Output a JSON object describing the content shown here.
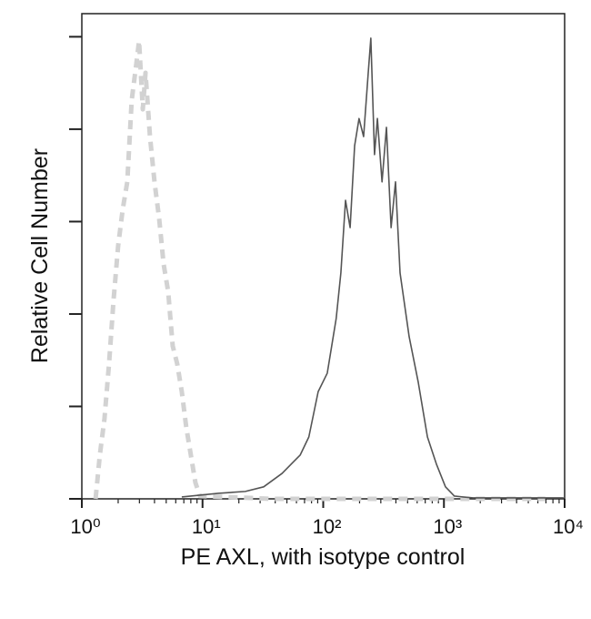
{
  "chart_data": {
    "type": "line",
    "xlabel": "PE AXL, with isotype control",
    "ylabel": "Relative Cell Number",
    "xscale": "log",
    "xlim": [
      1,
      10000
    ],
    "xticks": [
      {
        "value": 1,
        "label": "10⁰"
      },
      {
        "value": 10,
        "label": "10¹"
      },
      {
        "value": 100,
        "label": "10²"
      },
      {
        "value": 1000,
        "label": "10³"
      },
      {
        "value": 10000,
        "label": "10⁴"
      }
    ],
    "xminorticks": [
      2,
      3,
      4,
      5,
      6,
      7,
      8,
      9,
      20,
      30,
      40,
      50,
      60,
      70,
      80,
      90,
      200,
      300,
      400,
      500,
      600,
      700,
      800,
      900,
      2000,
      3000,
      4000,
      5000,
      6000,
      7000,
      8000,
      9000
    ],
    "ylim": [
      0,
      105
    ],
    "yticks": [
      0,
      20,
      40,
      60,
      80,
      100
    ],
    "series": [
      {
        "color": "#d2d2d2",
        "dashed": true,
        "x": [
          1.3,
          1.41,
          1.54,
          1.68,
          1.83,
          2.0,
          2.18,
          2.38,
          2.59,
          2.83,
          2.98,
          3.2,
          3.37,
          3.67,
          4.0,
          4.37,
          4.76,
          5.19,
          5.66,
          6.17,
          6.73,
          7.34,
          8.0,
          8.73,
          9.53,
          38.1,
          1230,
          6900
        ],
        "values": [
          0,
          9.5,
          17.3,
          29.2,
          42.9,
          54.8,
          62.6,
          68.6,
          86.3,
          94.2,
          99.1,
          84.3,
          92.2,
          78.4,
          68.6,
          60.7,
          50.8,
          44.9,
          33.1,
          29.2,
          23.2,
          15.4,
          9.5,
          3.5,
          0.6,
          0,
          0,
          0
        ]
      },
      {
        "color": "#555555",
        "dashed": false,
        "x": [
          6.73,
          13.5,
          22.6,
          32.1,
          45.6,
          54.2,
          64.5,
          76.0,
          90.8,
          108,
          128,
          140,
          153,
          167,
          182,
          198,
          216,
          236,
          248,
          266,
          281,
          307,
          334,
          365,
          397,
          433,
          515,
          613,
          730,
          867,
          1030,
          1220,
          1740,
          9800
        ],
        "values": [
          0.4,
          1.2,
          1.6,
          2.6,
          5.5,
          7.5,
          9.5,
          13.4,
          23.2,
          27.2,
          39.0,
          48.9,
          64.6,
          58.7,
          76.4,
          82.3,
          78.4,
          92.2,
          99.7,
          74.5,
          82.3,
          68.6,
          80.4,
          58.7,
          68.6,
          48.9,
          35.1,
          25.2,
          13.4,
          7.5,
          2.6,
          0.6,
          0.2,
          0.2
        ]
      }
    ]
  }
}
